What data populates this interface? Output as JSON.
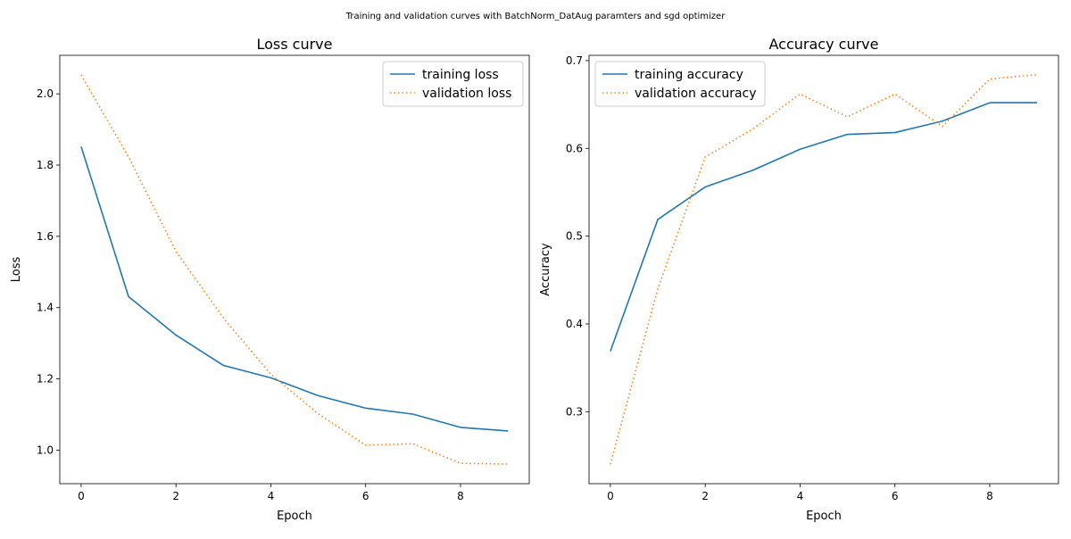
{
  "figure": {
    "suptitle": "Training and validation curves with BatchNorm_DatAug paramters and sgd optimizer"
  },
  "chart_data": [
    {
      "type": "line",
      "title": "Loss curve",
      "xlabel": "Epoch",
      "ylabel": "Loss",
      "xlim": [
        -0.45,
        9.45
      ],
      "ylim": [
        0.906,
        2.108
      ],
      "x_ticks": [
        0,
        2,
        4,
        6,
        8
      ],
      "x_tick_labels": [
        "0",
        "2",
        "4",
        "6",
        "8"
      ],
      "y_ticks": [
        1.0,
        1.2,
        1.4,
        1.6,
        1.8,
        2.0
      ],
      "y_tick_labels": [
        "1.0",
        "1.2",
        "1.4",
        "1.6",
        "1.8",
        "2.0"
      ],
      "grid": false,
      "legend_position": "upper right",
      "x": [
        0,
        1,
        2,
        3,
        4,
        5,
        6,
        7,
        8,
        9
      ],
      "series": [
        {
          "name": "training loss",
          "color": "#1f77b4",
          "linestyle": "solid",
          "values": [
            1.852,
            1.431,
            1.323,
            1.238,
            1.203,
            1.153,
            1.118,
            1.101,
            1.064,
            1.054
          ]
        },
        {
          "name": "validation loss",
          "color": "#ff7f0e",
          "linestyle": "dotted",
          "values": [
            2.053,
            1.823,
            1.558,
            1.371,
            1.213,
            1.102,
            1.014,
            1.018,
            0.963,
            0.961
          ]
        }
      ]
    },
    {
      "type": "line",
      "title": "Accuracy curve",
      "xlabel": "Epoch",
      "ylabel": "Accuracy",
      "xlim": [
        -0.45,
        9.45
      ],
      "ylim": [
        0.218,
        0.706
      ],
      "x_ticks": [
        0,
        2,
        4,
        6,
        8
      ],
      "x_tick_labels": [
        "0",
        "2",
        "4",
        "6",
        "8"
      ],
      "y_ticks": [
        0.3,
        0.4,
        0.5,
        0.6,
        0.7
      ],
      "y_tick_labels": [
        "0.3",
        "0.4",
        "0.5",
        "0.6",
        "0.7"
      ],
      "grid": false,
      "legend_position": "upper left",
      "x": [
        0,
        1,
        2,
        3,
        4,
        5,
        6,
        7,
        8,
        9
      ],
      "series": [
        {
          "name": "training accuracy",
          "color": "#1f77b4",
          "linestyle": "solid",
          "values": [
            0.369,
            0.519,
            0.556,
            0.575,
            0.599,
            0.616,
            0.618,
            0.631,
            0.652,
            0.652
          ]
        },
        {
          "name": "validation accuracy",
          "color": "#ff7f0e",
          "linestyle": "dotted",
          "values": [
            0.24,
            0.44,
            0.59,
            0.622,
            0.662,
            0.636,
            0.662,
            0.625,
            0.679,
            0.684
          ]
        }
      ]
    }
  ]
}
